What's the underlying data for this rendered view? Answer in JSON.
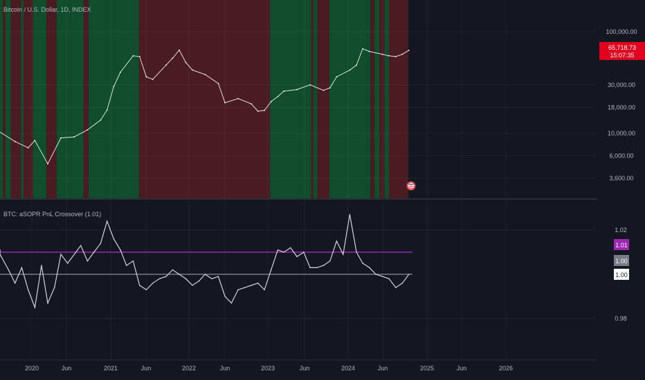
{
  "chart_data": [
    {
      "type": "line",
      "title": "Bitcoin / U.S. Dollar, 1D, INDEX",
      "scale": "log",
      "y_ticks": [
        "100,000.00",
        "30,000.00",
        "18,000.00",
        "10,000.00",
        "6,000.00",
        "3,600.00"
      ],
      "y_tick_values": [
        100000,
        30000,
        18000,
        10000,
        6000,
        3600
      ],
      "last_price": "65,718.73",
      "countdown": "15:07:35",
      "grid": true,
      "x": [
        "2019-07",
        "2019-10",
        "2019-12",
        "2020-01",
        "2020-03",
        "2020-05",
        "2020-07",
        "2020-09",
        "2020-11",
        "2020-12",
        "2021-01",
        "2021-02",
        "2021-04",
        "2021-05",
        "2021-06",
        "2021-07",
        "2021-09",
        "2021-10",
        "2021-11",
        "2021-12",
        "2022-01",
        "2022-03",
        "2022-05",
        "2022-06",
        "2022-08",
        "2022-10",
        "2022-11",
        "2022-12",
        "2023-01",
        "2023-02",
        "2023-03",
        "2023-05",
        "2023-07",
        "2023-09",
        "2023-10",
        "2023-11",
        "2024-01",
        "2024-02",
        "2024-03",
        "2024-04",
        "2024-06",
        "2024-07",
        "2024-08",
        "2024-09",
        "2024-10"
      ],
      "values": [
        11000,
        8300,
        7200,
        8500,
        5000,
        9000,
        9200,
        10800,
        13500,
        17000,
        29000,
        40000,
        58000,
        57000,
        36000,
        34000,
        47000,
        55000,
        66000,
        50000,
        42000,
        38000,
        31000,
        20000,
        22000,
        19500,
        16500,
        16800,
        20500,
        23000,
        26000,
        27000,
        30000,
        26500,
        28000,
        36000,
        42000,
        47000,
        68000,
        64000,
        60000,
        58000,
        57000,
        60000,
        65718.73
      ],
      "regimes": [
        {
          "start": "2019-06-25",
          "end": "2019-08-20",
          "state": "bull"
        },
        {
          "start": "2019-08-20",
          "end": "2019-09-01",
          "state": "bear"
        },
        {
          "start": "2019-09-01",
          "end": "2019-09-25",
          "state": "bull"
        },
        {
          "start": "2019-09-25",
          "end": "2019-11-12",
          "state": "bear"
        },
        {
          "start": "2019-11-12",
          "end": "2019-11-24",
          "state": "bull"
        },
        {
          "start": "2019-11-24",
          "end": "2020-01-06",
          "state": "bear"
        },
        {
          "start": "2020-01-06",
          "end": "2020-03-09",
          "state": "bull"
        },
        {
          "start": "2020-03-09",
          "end": "2020-04-25",
          "state": "bear"
        },
        {
          "start": "2020-04-25",
          "end": "2020-08-28",
          "state": "bull"
        },
        {
          "start": "2020-08-28",
          "end": "2020-09-20",
          "state": "bear"
        },
        {
          "start": "2020-09-20",
          "end": "2021-05-12",
          "state": "bull"
        },
        {
          "start": "2021-05-12",
          "end": "2023-01-10",
          "state": "bear"
        },
        {
          "start": "2023-01-10",
          "end": "2023-07-20",
          "state": "bull"
        },
        {
          "start": "2023-07-20",
          "end": "2023-07-30",
          "state": "bear"
        },
        {
          "start": "2023-07-30",
          "end": "2023-08-18",
          "state": "bull"
        },
        {
          "start": "2023-08-18",
          "end": "2023-10-12",
          "state": "bear"
        },
        {
          "start": "2024-10-12",
          "end": "2024-10-12",
          "state": "bull"
        },
        {
          "start": "2023-10-12",
          "end": "2024-04-20",
          "state": "bull"
        },
        {
          "start": "2024-04-20",
          "end": "2024-05-08",
          "state": "bear"
        },
        {
          "start": "2024-05-08",
          "end": "2024-06-01",
          "state": "bull"
        },
        {
          "start": "2024-06-01",
          "end": "2024-06-24",
          "state": "bear"
        },
        {
          "start": "2024-06-24",
          "end": "2024-07-15",
          "state": "bull"
        },
        {
          "start": "2024-07-15",
          "end": "2024-10-12",
          "state": "bear"
        }
      ]
    },
    {
      "type": "line",
      "title": "BTC: aSOPR PnL Crossover (1.01)",
      "y_ticks": [
        "1.02",
        "0.98"
      ],
      "y_tick_values": [
        1.02,
        0.98
      ],
      "threshold_upper": 1.01,
      "threshold_upper_label": "1.01",
      "baseline": 1.0,
      "baseline_label": "1.00",
      "last_value_label": "1.00",
      "x": [
        "2019-06",
        "2019-07",
        "2019-09",
        "2019-10",
        "2019-11",
        "2019-12",
        "2020-01",
        "2020-02",
        "2020-03",
        "2020-04",
        "2020-05",
        "2020-06",
        "2020-08",
        "2020-09",
        "2020-10",
        "2020-11",
        "2020-12",
        "2021-01",
        "2021-02",
        "2021-03",
        "2021-04",
        "2021-05",
        "2021-06",
        "2021-07",
        "2021-08",
        "2021-09",
        "2021-10",
        "2021-11",
        "2021-12",
        "2022-01",
        "2022-02",
        "2022-03",
        "2022-04",
        "2022-05",
        "2022-06",
        "2022-07",
        "2022-08",
        "2022-09",
        "2022-10",
        "2022-11",
        "2022-12",
        "2023-01",
        "2023-02",
        "2023-03",
        "2023-04",
        "2023-05",
        "2023-06",
        "2023-07",
        "2023-08",
        "2023-09",
        "2023-10",
        "2023-11",
        "2023-12",
        "2024-01",
        "2024-02",
        "2024-03",
        "2024-04",
        "2024-05",
        "2024-06",
        "2024-07",
        "2024-08",
        "2024-09",
        "2024-10"
      ],
      "values": [
        1.011,
        1.009,
        1.002,
        0.996,
        1.003,
        0.993,
        0.985,
        1.004,
        0.987,
        0.994,
        1.009,
        1.005,
        1.013,
        1.006,
        1.01,
        1.014,
        1.024,
        1.016,
        1.011,
        1.004,
        1.006,
        0.995,
        0.993,
        0.996,
        0.998,
        0.999,
        1.002,
        1.0,
        0.998,
        0.995,
        0.997,
        1.0,
        0.998,
        0.999,
        0.99,
        0.987,
        0.993,
        0.994,
        0.995,
        0.996,
        0.993,
        1.002,
        1.011,
        1.01,
        1.012,
        1.008,
        1.01,
        1.003,
        1.003,
        1.004,
        1.006,
        1.015,
        1.009,
        1.027,
        1.01,
        1.005,
        1.003,
        1.0,
        0.999,
        0.998,
        0.994,
        0.996,
        1.0
      ],
      "colors": {
        "price": "#ffffff",
        "osc": "#d1d4dc",
        "upper": "#9c27b0",
        "baseline": "#787b86"
      }
    }
  ],
  "x_axis": {
    "labels": [
      "2020",
      "Jun",
      "2021",
      "Jun",
      "2022",
      "Jun",
      "2023",
      "Jun",
      "2024",
      "Jun",
      "2025",
      "Jun",
      "2026"
    ]
  },
  "colors": {
    "bull": "#0f4d2d",
    "bear": "#4a1b23",
    "last_price_bg": "#e1001e",
    "upper_bg": "#9c27b0",
    "baseline_bg": "#787b86",
    "last_bg": "#ffffff"
  }
}
